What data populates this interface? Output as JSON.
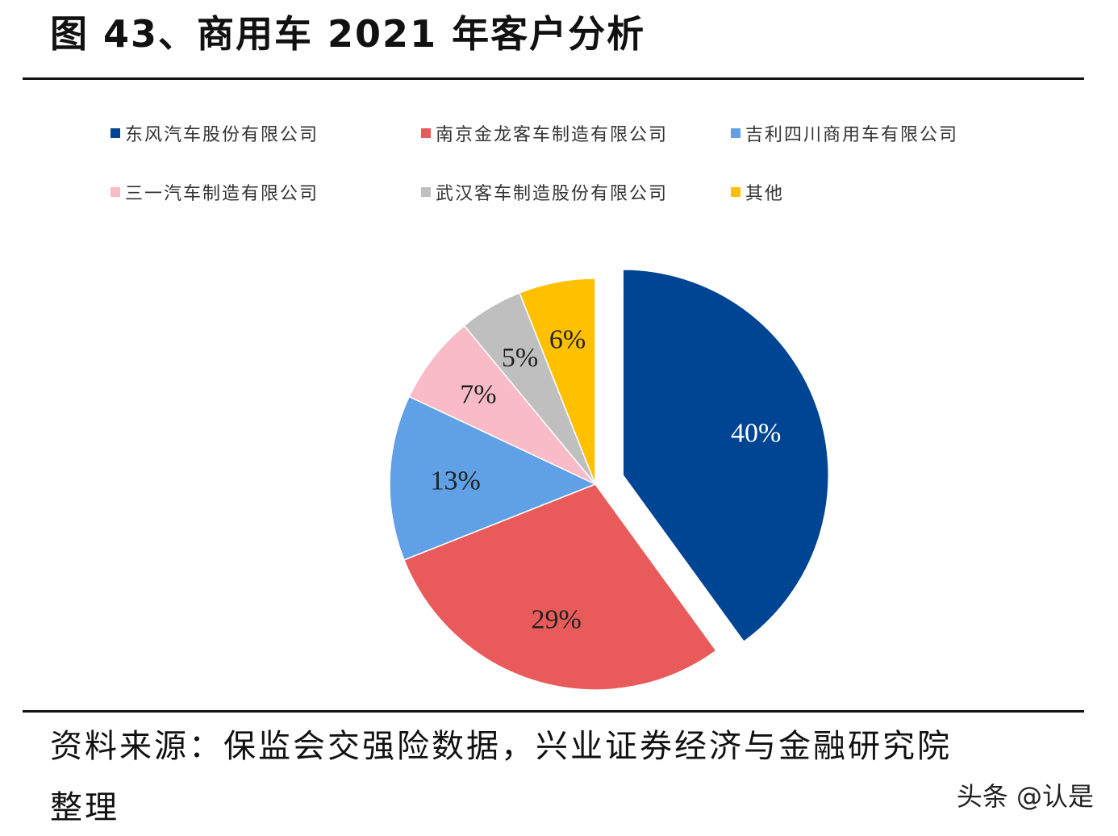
{
  "title": "图 43、商用车 2021 年客户分析",
  "source_line1": "资料来源：保监会交强险数据，兴业证券经济与金融研究院",
  "source_line2": "整理",
  "watermark": "头条 @认是",
  "chart_data": {
    "type": "pie",
    "title": "",
    "start_angle": "12 o'clock, clockwise",
    "exploded": [
      "东风汽车股份有限公司"
    ],
    "legend_placement": "top",
    "series": [
      {
        "name": "东风汽车股份有限公司",
        "value": 40,
        "label": "40%",
        "color": "#004494",
        "label_color": "#ffffff"
      },
      {
        "name": "南京金龙客车制造有限公司",
        "value": 29,
        "label": "29%",
        "color": "#E95B5B",
        "label_color": "#222222"
      },
      {
        "name": "吉利四川商用车有限公司",
        "value": 13,
        "label": "13%",
        "color": "#5FA0E6",
        "label_color": "#222222"
      },
      {
        "name": "三一汽车制造有限公司",
        "value": 7,
        "label": "7%",
        "color": "#F9BBC8",
        "label_color": "#222222"
      },
      {
        "name": "武汉客车制造股份有限公司",
        "value": 5,
        "label": "5%",
        "color": "#BFBFBF",
        "label_color": "#222222"
      },
      {
        "name": "其他",
        "value": 6,
        "label": "6%",
        "color": "#FFC000",
        "label_color": "#222222"
      }
    ]
  }
}
